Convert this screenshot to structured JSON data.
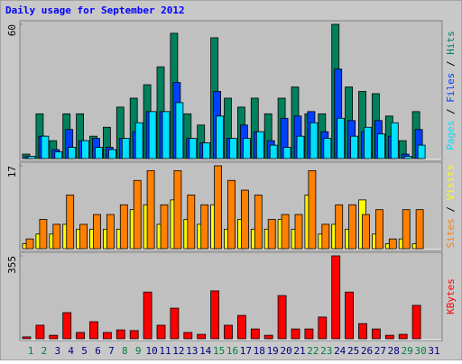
{
  "title": "Daily usage for September 2012",
  "legend_separator": " / ",
  "chart_data": [
    {
      "type": "bar",
      "ylim": [
        0,
        60
      ],
      "yticks": [
        60
      ],
      "series": [
        {
          "name": "Hits",
          "color": "#00805c",
          "values": [
            2,
            20,
            8,
            20,
            20,
            10,
            14,
            23,
            27,
            33,
            41,
            56,
            20,
            15,
            54,
            27,
            23,
            27,
            20,
            27,
            32,
            20,
            20,
            60,
            32,
            30,
            29,
            19,
            8,
            21,
            0
          ]
        },
        {
          "name": "Files",
          "color": "#0040ff",
          "values": [
            1,
            10,
            4,
            13,
            8,
            9,
            5,
            9,
            12,
            21,
            21,
            34,
            9,
            7,
            30,
            9,
            15,
            12,
            8,
            18,
            19,
            21,
            12,
            40,
            17,
            12,
            17,
            10,
            2,
            13,
            0
          ]
        },
        {
          "name": "Pages",
          "color": "#00e0ff",
          "values": [
            1,
            10,
            3,
            5,
            8,
            5,
            4,
            9,
            16,
            21,
            21,
            25,
            9,
            7,
            19,
            9,
            9,
            12,
            6,
            5,
            10,
            16,
            9,
            18,
            10,
            14,
            11,
            16,
            1,
            6,
            0
          ]
        }
      ]
    },
    {
      "type": "bar",
      "ylim": [
        0,
        17
      ],
      "yticks": [
        17
      ],
      "series": [
        {
          "name": "Visits",
          "color": "#ffff00",
          "values": [
            1,
            3,
            3,
            5,
            4,
            4,
            4,
            4,
            8,
            9,
            5,
            10,
            6,
            5,
            9,
            4,
            6,
            4,
            4,
            6,
            4,
            11,
            3,
            5,
            4,
            10,
            3,
            1,
            2,
            1,
            0
          ]
        },
        {
          "name": "Sites",
          "color": "#ff8000",
          "values": [
            2,
            6,
            5,
            11,
            5,
            7,
            7,
            9,
            14,
            16,
            9,
            16,
            11,
            9,
            17,
            14,
            12,
            11,
            6,
            7,
            7,
            16,
            5,
            9,
            9,
            7,
            8,
            2,
            8,
            8,
            0
          ]
        }
      ]
    },
    {
      "type": "bar",
      "ylim": [
        0,
        355
      ],
      "yticks": [
        355
      ],
      "categories": [
        "1",
        "2",
        "3",
        "4",
        "5",
        "6",
        "7",
        "8",
        "9",
        "10",
        "11",
        "12",
        "13",
        "14",
        "15",
        "16",
        "17",
        "18",
        "19",
        "20",
        "21",
        "22",
        "23",
        "24",
        "25",
        "26",
        "27",
        "28",
        "29",
        "30",
        "31"
      ],
      "category_colors": [
        "#008040",
        "#008040",
        "#000080",
        "#000080",
        "#000080",
        "#000080",
        "#000080",
        "#008040",
        "#008040",
        "#000080",
        "#000080",
        "#000080",
        "#000080",
        "#000080",
        "#008040",
        "#008040",
        "#000080",
        "#000080",
        "#000080",
        "#000080",
        "#000080",
        "#008040",
        "#008040",
        "#000080",
        "#000080",
        "#000080",
        "#000080",
        "#000080",
        "#008040",
        "#008040",
        "#000080"
      ],
      "series": [
        {
          "name": "KBytes",
          "color": "#ff0000",
          "values": [
            8,
            58,
            15,
            112,
            27,
            73,
            27,
            38,
            35,
            200,
            58,
            131,
            27,
            19,
            205,
            58,
            100,
            42,
            15,
            185,
            42,
            42,
            93,
            355,
            200,
            65,
            42,
            15,
            19,
            143,
            0
          ]
        }
      ]
    }
  ]
}
